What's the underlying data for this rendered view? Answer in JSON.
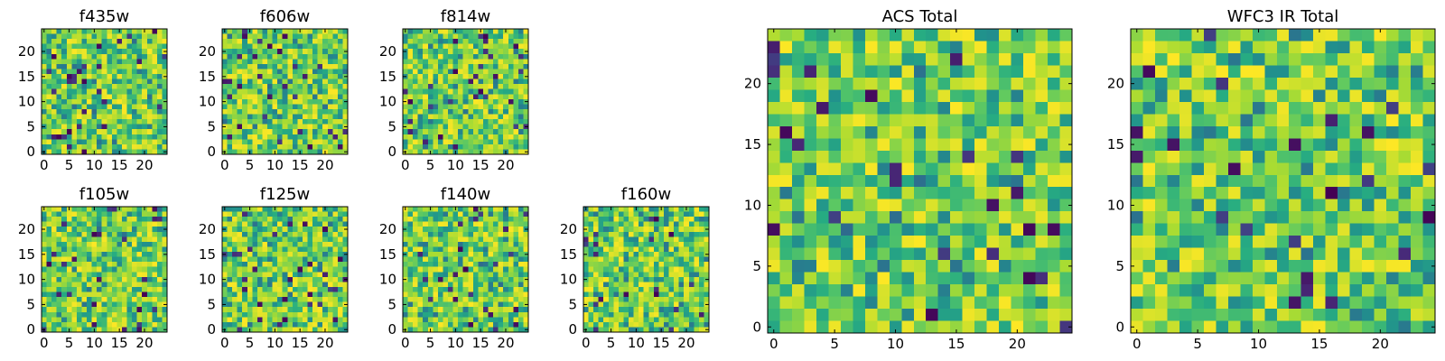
{
  "chart_data": [
    {
      "type": "heatmap",
      "title": "f435w",
      "grid_size": 25,
      "xlim": [
        0,
        25
      ],
      "ylim": [
        0,
        25
      ],
      "xticks": [
        0,
        5,
        10,
        15,
        20
      ],
      "yticks": [
        0,
        5,
        10,
        15,
        20
      ],
      "colormap": "viridis",
      "grid": false,
      "seed": 11
    },
    {
      "type": "heatmap",
      "title": "f606w",
      "grid_size": 25,
      "xlim": [
        0,
        25
      ],
      "ylim": [
        0,
        25
      ],
      "xticks": [
        0,
        5,
        10,
        15,
        20
      ],
      "yticks": [
        0,
        5,
        10,
        15,
        20
      ],
      "colormap": "viridis",
      "grid": false,
      "seed": 23
    },
    {
      "type": "heatmap",
      "title": "f814w",
      "grid_size": 25,
      "xlim": [
        0,
        25
      ],
      "ylim": [
        0,
        25
      ],
      "xticks": [
        0,
        5,
        10,
        15,
        20
      ],
      "yticks": [
        0,
        5,
        10,
        15,
        20
      ],
      "colormap": "viridis",
      "grid": false,
      "seed": 37
    },
    {
      "type": "heatmap",
      "title": "f105w",
      "grid_size": 25,
      "xlim": [
        0,
        25
      ],
      "ylim": [
        0,
        25
      ],
      "xticks": [
        0,
        5,
        10,
        15,
        20
      ],
      "yticks": [
        0,
        5,
        10,
        15,
        20
      ],
      "colormap": "viridis",
      "grid": false,
      "seed": 41
    },
    {
      "type": "heatmap",
      "title": "f125w",
      "grid_size": 25,
      "xlim": [
        0,
        25
      ],
      "ylim": [
        0,
        25
      ],
      "xticks": [
        0,
        5,
        10,
        15,
        20
      ],
      "yticks": [
        0,
        5,
        10,
        15,
        20
      ],
      "colormap": "viridis",
      "grid": false,
      "seed": 53
    },
    {
      "type": "heatmap",
      "title": "f140w",
      "grid_size": 25,
      "xlim": [
        0,
        25
      ],
      "ylim": [
        0,
        25
      ],
      "xticks": [
        0,
        5,
        10,
        15,
        20
      ],
      "yticks": [
        0,
        5,
        10,
        15,
        20
      ],
      "colormap": "viridis",
      "grid": false,
      "seed": 67
    },
    {
      "type": "heatmap",
      "title": "f160w",
      "grid_size": 25,
      "xlim": [
        0,
        25
      ],
      "ylim": [
        0,
        25
      ],
      "xticks": [
        0,
        5,
        10,
        15,
        20
      ],
      "yticks": [
        0,
        5,
        10,
        15,
        20
      ],
      "colormap": "viridis",
      "grid": false,
      "seed": 79
    },
    {
      "type": "heatmap",
      "title": "ACS Total",
      "grid_size": 25,
      "xlim": [
        0,
        25
      ],
      "ylim": [
        0,
        25
      ],
      "xticks": [
        0,
        5,
        10,
        15,
        20
      ],
      "yticks": [
        0,
        5,
        10,
        15,
        20
      ],
      "colormap": "viridis",
      "grid": false,
      "seed": 83
    },
    {
      "type": "heatmap",
      "title": "WFC3 IR Total",
      "grid_size": 25,
      "xlim": [
        0,
        25
      ],
      "ylim": [
        0,
        25
      ],
      "xticks": [
        0,
        5,
        10,
        15,
        20
      ],
      "yticks": [
        0,
        5,
        10,
        15,
        20
      ],
      "colormap": "viridis",
      "grid": false,
      "seed": 97
    }
  ]
}
